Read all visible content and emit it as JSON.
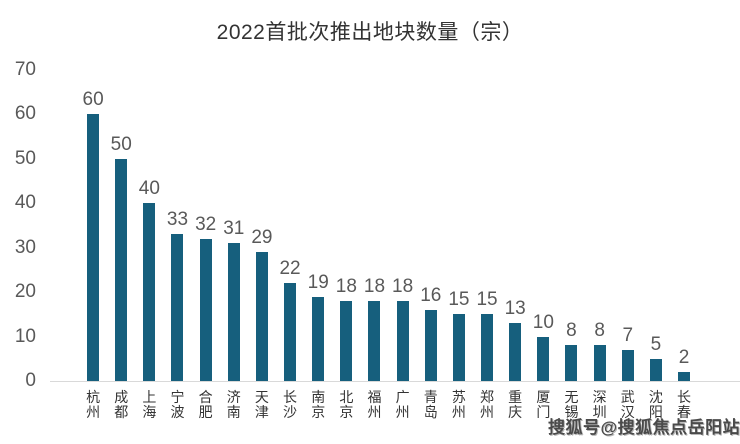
{
  "chart_data": {
    "type": "bar",
    "title": "2022首批次推出地块数量（宗）",
    "categories": [
      "杭州",
      "成都",
      "上海",
      "宁波",
      "合肥",
      "济南",
      "天津",
      "长沙",
      "南京",
      "北京",
      "福州",
      "广州",
      "青岛",
      "苏州",
      "郑州",
      "重庆",
      "厦门",
      "无锡",
      "深圳",
      "武汉",
      "沈阳",
      "长春"
    ],
    "values": [
      60,
      50,
      40,
      33,
      32,
      31,
      29,
      22,
      19,
      18,
      18,
      18,
      16,
      15,
      15,
      13,
      10,
      8,
      8,
      7,
      5,
      2
    ],
    "xlabel": "",
    "ylabel": "",
    "ylim": [
      0,
      70
    ],
    "yticks": [
      0,
      10,
      20,
      30,
      40,
      50,
      60,
      70
    ],
    "grid": false,
    "legend": "none",
    "data_labels": true,
    "bar_color": "#165f7d",
    "axis_line_color": "#d9d9d9",
    "tick_label_color": "#595959",
    "category_label_color": "#333333"
  },
  "watermark": {
    "text": "搜狐号@搜狐焦点岳阳站"
  }
}
